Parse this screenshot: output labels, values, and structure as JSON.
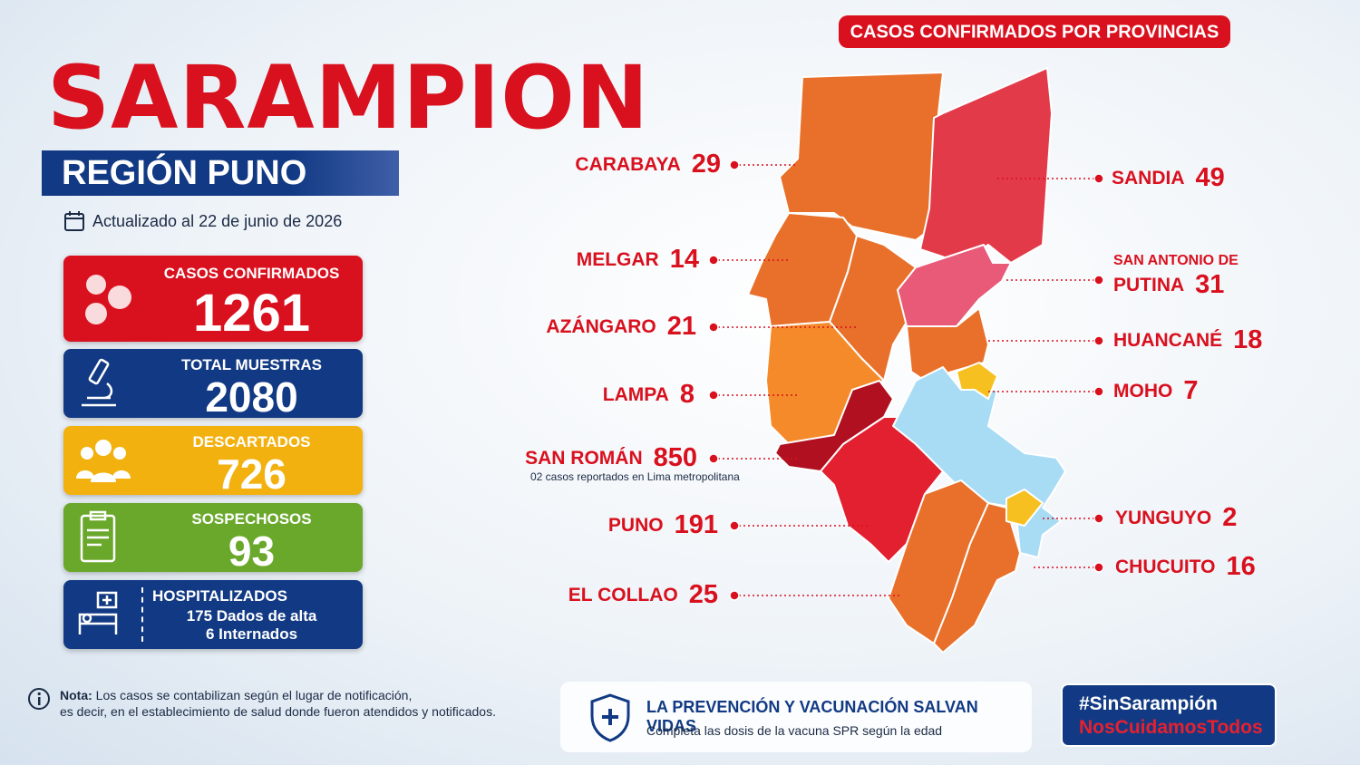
{
  "header": {
    "title": "SARAMPION",
    "region": "REGIÓN PUNO",
    "updated": "Actualizado al 22 de junio de 2026"
  },
  "stats": [
    {
      "label": "CASOS CONFIRMADOS",
      "value": "1261"
    },
    {
      "label": "TOTAL MUESTRAS",
      "value": "2080"
    },
    {
      "label": "DESCARTADOS",
      "value": "726"
    },
    {
      "label": "SOSPECHOSOS",
      "value": "93"
    },
    {
      "label": "HOSPITALIZADOS",
      "lines": [
        "175 Dados de alta",
        "6 Internados"
      ]
    }
  ],
  "map": {
    "title": "CASOS CONFIRMADOS POR PROVINCIAS",
    "provinces": [
      {
        "name": "CARABAYA",
        "cases": "29"
      },
      {
        "name": "MELGAR",
        "cases": "14"
      },
      {
        "name": "AZÁNGARO",
        "cases": "21"
      },
      {
        "name": "LAMPA",
        "cases": "8"
      },
      {
        "name": "SAN ROMÁN",
        "cases": "850",
        "note": "02 casos reportados en Lima metropolitana"
      },
      {
        "name": "PUNO",
        "cases": "191"
      },
      {
        "name": "EL COLLAO",
        "cases": "25"
      },
      {
        "name": "SANDIA",
        "cases": "49"
      },
      {
        "prefix": "SAN ANTONIO DE",
        "name": "PUTINA",
        "cases": "31"
      },
      {
        "name": "HUANCANÉ",
        "cases": "18"
      },
      {
        "name": "MOHO",
        "cases": "7"
      },
      {
        "name": "YUNGUYO",
        "cases": "2"
      },
      {
        "name": "CHUCUITO",
        "cases": "16"
      }
    ]
  },
  "note": {
    "label": "Nota:",
    "lines": [
      "Los casos se contabilizan según el lugar de notificación,",
      "es decir, en el establecimiento de salud donde fueron atendidos y notificados."
    ]
  },
  "banner": {
    "title": "LA PREVENCIÓN Y VACUNACIÓN SALVAN VIDAS",
    "subtitle": "Completa las dosis de la vacuna SPR según la edad"
  },
  "hashtags": [
    "#SinSarampión",
    "NosCuidamosTodos"
  ]
}
